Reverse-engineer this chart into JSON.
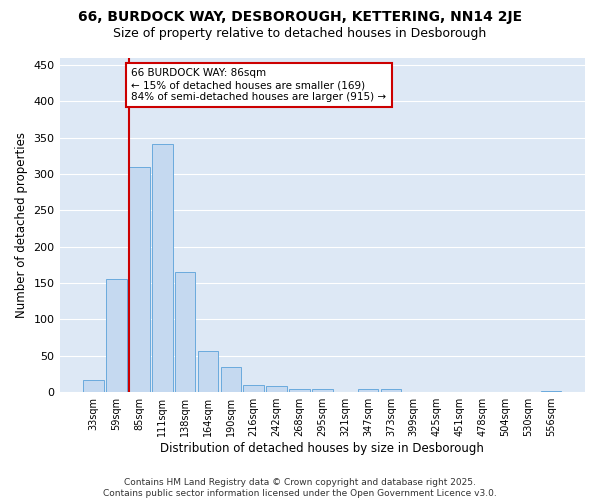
{
  "title": "66, BURDOCK WAY, DESBOROUGH, KETTERING, NN14 2JE",
  "subtitle": "Size of property relative to detached houses in Desborough",
  "xlabel": "Distribution of detached houses by size in Desborough",
  "ylabel": "Number of detached properties",
  "categories": [
    "33sqm",
    "59sqm",
    "85sqm",
    "111sqm",
    "138sqm",
    "164sqm",
    "190sqm",
    "216sqm",
    "242sqm",
    "268sqm",
    "295sqm",
    "321sqm",
    "347sqm",
    "373sqm",
    "399sqm",
    "425sqm",
    "451sqm",
    "478sqm",
    "504sqm",
    "530sqm",
    "556sqm"
  ],
  "values": [
    17,
    155,
    309,
    341,
    165,
    57,
    35,
    10,
    9,
    5,
    4,
    0,
    4,
    4,
    0,
    0,
    0,
    0,
    0,
    0,
    1
  ],
  "bar_color": "#c5d9f0",
  "bar_edge_color": "#6aaadd",
  "vline_color": "#cc0000",
  "annotation_line1": "66 BURDOCK WAY: 86sqm",
  "annotation_line2": "← 15% of detached houses are smaller (169)",
  "annotation_line3": "84% of semi-detached houses are larger (915) →",
  "annotation_box_facecolor": "#ffffff",
  "annotation_box_edgecolor": "#cc0000",
  "background_color": "#dde8f5",
  "grid_color": "#ffffff",
  "ylim": [
    0,
    460
  ],
  "yticks": [
    0,
    50,
    100,
    150,
    200,
    250,
    300,
    350,
    400,
    450
  ],
  "footer_text": "Contains HM Land Registry data © Crown copyright and database right 2025.\nContains public sector information licensed under the Open Government Licence v3.0.",
  "title_fontsize": 10,
  "subtitle_fontsize": 9,
  "xlabel_fontsize": 8.5,
  "ylabel_fontsize": 8.5,
  "tick_fontsize": 7,
  "annotation_fontsize": 7.5,
  "footer_fontsize": 6.5
}
